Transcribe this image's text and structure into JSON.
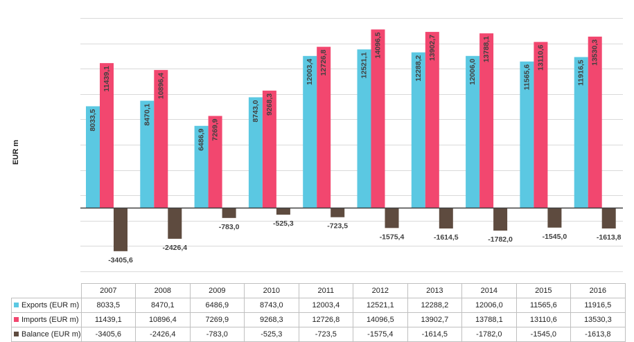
{
  "chart_data": {
    "type": "bar",
    "ylabel": "EUR m",
    "categories": [
      "2007",
      "2008",
      "2009",
      "2010",
      "2011",
      "2012",
      "2013",
      "2014",
      "2015",
      "2016"
    ],
    "ylim": [
      -5000,
      16000
    ],
    "grid": true,
    "series": [
      {
        "name": "Exports (EUR m)",
        "color": "#5bc8e2",
        "values": [
          8033.5,
          8470.1,
          6486.9,
          8743.0,
          12003.4,
          12521.1,
          12288.2,
          12006.0,
          11565.6,
          11916.5
        ],
        "labels": [
          "8033,5",
          "8470,1",
          "6486,9",
          "8743,0",
          "12003,4",
          "12521,1",
          "12288,2",
          "12006,0",
          "11565,6",
          "11916,5"
        ]
      },
      {
        "name": "Imports (EUR m)",
        "color": "#f2476f",
        "values": [
          11439.1,
          10896.4,
          7269.9,
          9268.3,
          12726.8,
          14096.5,
          13902.7,
          13788.1,
          13110.6,
          13530.3
        ],
        "labels": [
          "11439,1",
          "10896,4",
          "7269,9",
          "9268,3",
          "12726,8",
          "14096,5",
          "13902,7",
          "13788,1",
          "13110,6",
          "13530,3"
        ]
      },
      {
        "name": "Balance (EUR m)",
        "color": "#5e4b3f",
        "values": [
          -3405.6,
          -2426.4,
          -783.0,
          -525.3,
          -723.5,
          -1575.4,
          -1614.5,
          -1782.0,
          -1545.0,
          -1613.8
        ],
        "labels": [
          "-3405,6",
          "-2426,4",
          "-783,0",
          "-525,3",
          "-723,5",
          "-1575,4",
          "-1614,5",
          "-1782,0",
          "-1545,0",
          "-1613,8"
        ]
      }
    ]
  }
}
